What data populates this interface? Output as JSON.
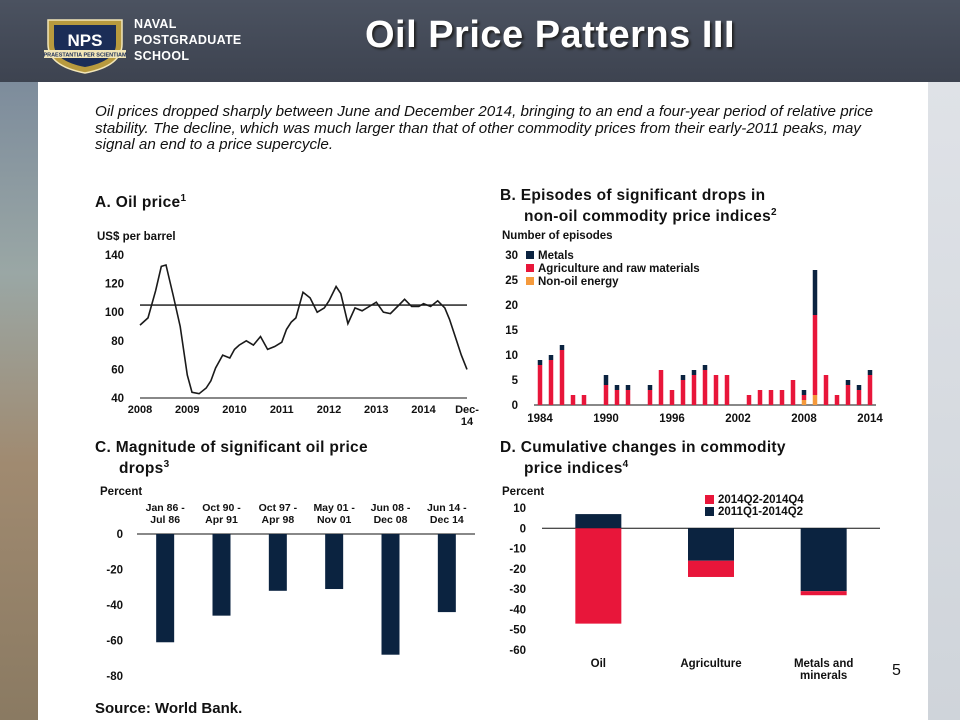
{
  "header": {
    "logo_badge": "NPS",
    "logo_motto": "PRAESTANTIA PER SCIENTIAM",
    "logo_lines": [
      "NAVAL",
      "POSTGRADUATE",
      "SCHOOL"
    ],
    "title": "Oil Price Patterns III",
    "background": "#454b57"
  },
  "intro": "Oil prices dropped sharply between June and December 2014, bringing to an end a four-year period of relative price stability. The decline, which was much larger than that of other commodity prices from their early-2011 peaks, may signal an end to a price supercycle.",
  "panels": {
    "a": {
      "title": "A. Oil price",
      "sup": "1",
      "unit": "US$ per barrel"
    },
    "b": {
      "title1": "B. Episodes of significant drops in",
      "title2": "non-oil commodity price indices",
      "sup": "2",
      "unit": "Number of episodes"
    },
    "c": {
      "title1": "C. Magnitude of significant oil price",
      "title2": "drops",
      "sup": "3",
      "unit": "Percent"
    },
    "d": {
      "title1": "D. Cumulative changes in commodity",
      "title2": "price indices",
      "sup": "4",
      "unit": "Percent"
    }
  },
  "source": "Source: World Bank.",
  "page_number": "5",
  "chart_data": [
    {
      "type": "line",
      "ylim": [
        40,
        140
      ],
      "yticks": [
        40,
        60,
        80,
        100,
        120,
        140
      ],
      "xtick_labels": [
        "2008",
        "2009",
        "2010",
        "2011",
        "2012",
        "2013",
        "2014",
        "Dec-14"
      ],
      "reference_line": 105,
      "color": "#1a1a1a",
      "series": [
        {
          "x": [
            2008.0,
            2008.17,
            2008.33,
            2008.45,
            2008.55,
            2008.7,
            2008.85,
            2009.0,
            2009.1,
            2009.25,
            2009.4,
            2009.5,
            2009.6,
            2009.75,
            2009.9,
            2010.0,
            2010.1,
            2010.25,
            2010.4,
            2010.55,
            2010.7,
            2010.85,
            2011.0,
            2011.1,
            2011.2,
            2011.3,
            2011.45,
            2011.6,
            2011.75,
            2011.9,
            2012.0,
            2012.15,
            2012.25,
            2012.4,
            2012.55,
            2012.7,
            2012.85,
            2013.0,
            2013.15,
            2013.3,
            2013.45,
            2013.6,
            2013.75,
            2013.9,
            2014.0,
            2014.15,
            2014.3,
            2014.45,
            2014.55,
            2014.7,
            2014.8,
            2014.92
          ],
          "values": [
            91,
            96,
            115,
            132,
            133,
            112,
            90,
            56,
            44,
            43,
            47,
            52,
            61,
            70,
            68,
            74,
            77,
            80,
            77,
            83,
            74,
            76,
            79,
            88,
            93,
            96,
            114,
            110,
            100,
            103,
            108,
            118,
            113,
            92,
            103,
            101,
            104,
            107,
            100,
            99,
            104,
            109,
            104,
            104,
            106,
            104,
            108,
            103,
            95,
            80,
            70,
            60
          ]
        }
      ]
    },
    {
      "type": "bar",
      "stacked": true,
      "ylim": [
        0,
        30
      ],
      "yticks": [
        0,
        5,
        10,
        15,
        20,
        25,
        30
      ],
      "x_range": [
        1984,
        2014
      ],
      "xtick_labels": [
        "1984",
        "1990",
        "1996",
        "2002",
        "2008",
        "2014"
      ],
      "legend": "top-left",
      "x": [
        1984,
        1985,
        1986,
        1987,
        1988,
        1990,
        1991,
        1992,
        1994,
        1995,
        1996,
        1997,
        1998,
        1999,
        2000,
        2001,
        2003,
        2004,
        2005,
        2006,
        2007,
        2008,
        2009,
        2010,
        2011,
        2012,
        2013,
        2014
      ],
      "series": [
        {
          "name": "Metals",
          "color": "#0b2340",
          "values": [
            1,
            1,
            1,
            0,
            0,
            2,
            1,
            1,
            1,
            0,
            0,
            1,
            1,
            1,
            0,
            0,
            0,
            0,
            0,
            0,
            0,
            1,
            9,
            0,
            0,
            1,
            1,
            1
          ]
        },
        {
          "name": "Agriculture and raw materials",
          "color": "#e8163a",
          "values": [
            8,
            9,
            11,
            2,
            2,
            4,
            3,
            3,
            3,
            7,
            3,
            5,
            6,
            7,
            6,
            6,
            2,
            3,
            3,
            3,
            5,
            1,
            16,
            6,
            2,
            4,
            3,
            6
          ]
        },
        {
          "name": "Non-oil energy",
          "color": "#f59a3c",
          "values": [
            0,
            0,
            0,
            0,
            0,
            0,
            0,
            0,
            0,
            0,
            0,
            0,
            0,
            0,
            0,
            0,
            0,
            0,
            0,
            0,
            0,
            1,
            2,
            0,
            0,
            0,
            0,
            0
          ]
        }
      ]
    },
    {
      "type": "bar",
      "ylim": [
        -80,
        0
      ],
      "yticks": [
        0,
        -20,
        -40,
        -60,
        -80
      ],
      "categories": [
        "Jan 86 - Jul 86",
        "Oct 90 - Apr 91",
        "Oct 97 - Apr 98",
        "May 01 - Nov 01",
        "Jun 08 - Dec 08",
        "Jun 14 - Dec 14"
      ],
      "category_lines": [
        [
          "Jan 86 -",
          "Jul 86"
        ],
        [
          "Oct 90 -",
          "Apr 91"
        ],
        [
          "Oct 97 -",
          "Apr 98"
        ],
        [
          "May 01 -",
          "Nov 01"
        ],
        [
          "Jun 08 -",
          "Dec 08"
        ],
        [
          "Jun 14 -",
          "Dec 14"
        ]
      ],
      "color": "#0b2340",
      "values": [
        -61,
        -46,
        -32,
        -31,
        -68,
        -44
      ]
    },
    {
      "type": "bar",
      "ylim": [
        -60,
        10
      ],
      "yticks": [
        10,
        0,
        -10,
        -20,
        -30,
        -40,
        -50,
        -60
      ],
      "categories": [
        "Oil",
        "Agriculture",
        "Metals and minerals"
      ],
      "category_lines": [
        [
          "Oil"
        ],
        [
          "Agriculture"
        ],
        [
          "Metals and",
          "minerals"
        ]
      ],
      "legend": "top",
      "series": [
        {
          "name": "2014Q2-2014Q4",
          "color": "#e8163a",
          "values": [
            -47,
            -8,
            -2
          ]
        },
        {
          "name": "2011Q1-2014Q2",
          "color": "#0b2340",
          "values": [
            7,
            -16,
            -31
          ]
        }
      ]
    }
  ]
}
